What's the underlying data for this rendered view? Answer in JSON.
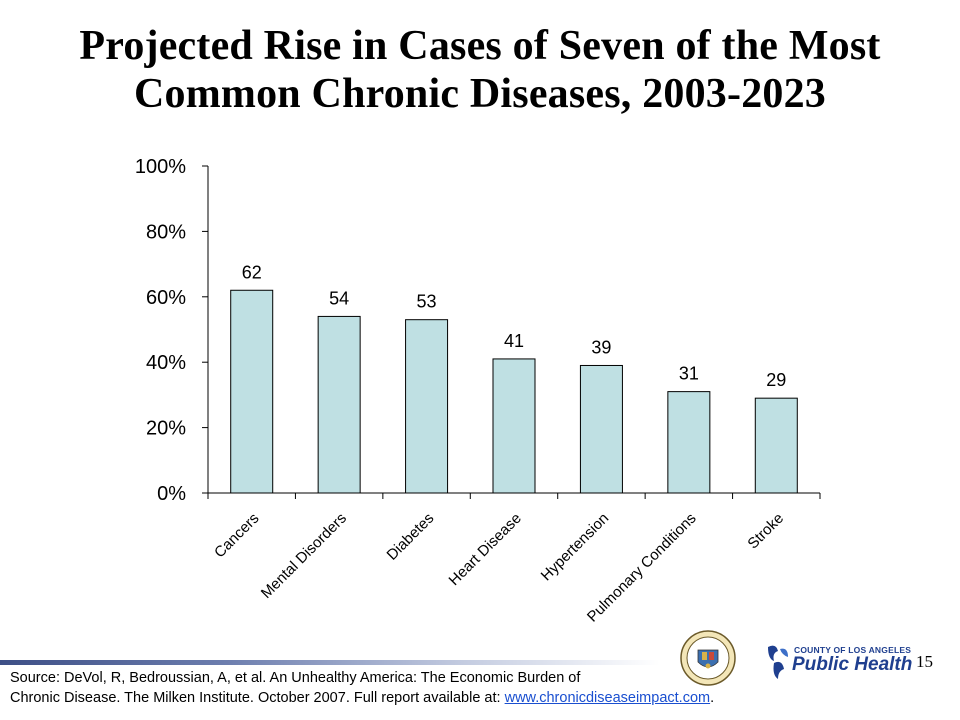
{
  "title_line1": "Projected Rise in Cases of Seven of the Most",
  "title_line2": "Common Chronic Diseases, 2003-2023",
  "chart_data": {
    "type": "bar",
    "categories": [
      "Cancers",
      "Mental Disorders",
      "Diabetes",
      "Heart Disease",
      "Hypertension",
      "Pulmonary Conditions",
      "Stroke"
    ],
    "values": [
      62,
      54,
      53,
      41,
      39,
      31,
      29
    ],
    "data_labels": [
      "62",
      "54",
      "53",
      "41",
      "39",
      "31",
      "29"
    ],
    "yticks": [
      "0%",
      "20%",
      "40%",
      "60%",
      "80%",
      "100%"
    ],
    "ylim": [
      0,
      100
    ],
    "grid": false,
    "legend": "none",
    "bar_color": "#bfe0e3",
    "bar_edge_color": "#000000"
  },
  "source": {
    "line1": "Source: DeVol, R, Bedroussian, A, et al.  An Unhealthy America: The Economic Burden of",
    "line2": "Chronic Disease. The Milken Institute. October 2007.  Full report available at: ",
    "link_text": "www.chronicdiseaseimpact.com",
    "trailing": "."
  },
  "page_number": "15",
  "logo": {
    "small_text": "COUNTY OF LOS ANGELES",
    "big_text": "Public Health",
    "color": "#1f3f8f"
  }
}
